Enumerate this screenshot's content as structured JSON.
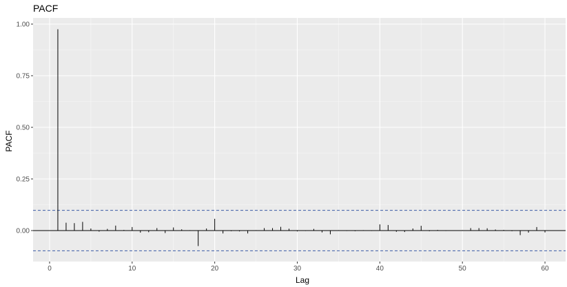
{
  "chart_data": {
    "type": "bar",
    "title": "PACF",
    "xlabel": "Lag",
    "ylabel": "PACF",
    "xlim": [
      -2,
      62.5
    ],
    "ylim": [
      -0.15,
      1.03
    ],
    "x_ticks": [
      0,
      10,
      20,
      30,
      40,
      50,
      60
    ],
    "y_ticks": [
      0,
      0.25,
      0.5,
      0.75,
      1
    ],
    "x_tick_labels": [
      "0",
      "10",
      "20",
      "30",
      "40",
      "50",
      "60"
    ],
    "y_tick_labels": [
      "0.00",
      "0.25",
      "0.50",
      "0.75",
      "1.00"
    ],
    "confidence_bound": 0.098,
    "grid": true,
    "lags": [
      1,
      2,
      3,
      4,
      5,
      6,
      7,
      8,
      9,
      10,
      11,
      12,
      13,
      14,
      15,
      16,
      17,
      18,
      19,
      20,
      21,
      22,
      23,
      24,
      25,
      26,
      27,
      28,
      29,
      30,
      31,
      32,
      33,
      34,
      35,
      36,
      37,
      38,
      39,
      40,
      41,
      42,
      43,
      44,
      45,
      46,
      47,
      48,
      49,
      50,
      51,
      52,
      53,
      54,
      55,
      56,
      57,
      58,
      59,
      60
    ],
    "values": [
      0.975,
      0.038,
      0.036,
      0.042,
      0.01,
      -0.005,
      0.008,
      0.024,
      0.003,
      0.017,
      -0.01,
      -0.008,
      0.012,
      -0.012,
      0.015,
      0.006,
      0.002,
      -0.075,
      0.01,
      0.057,
      -0.014,
      -0.003,
      -0.004,
      -0.014,
      0.002,
      0.012,
      0.012,
      0.018,
      0.009,
      -0.004,
      -0.002,
      0.008,
      -0.009,
      -0.018,
      0.002,
      -0.002,
      -0.003,
      0.002,
      -0.002,
      0.03,
      0.027,
      -0.006,
      -0.007,
      0.01,
      0.023,
      -0.003,
      0.003,
      -0.002,
      0.001,
      0.002,
      0.012,
      0.012,
      0.011,
      0.005,
      0.003,
      -0.003,
      -0.022,
      -0.01,
      0.017,
      -0.009
    ]
  },
  "colors": {
    "panel": "#ebebeb",
    "grid_major": "#ffffff",
    "bars": "#000000",
    "confidence": "#3b5ba5"
  }
}
